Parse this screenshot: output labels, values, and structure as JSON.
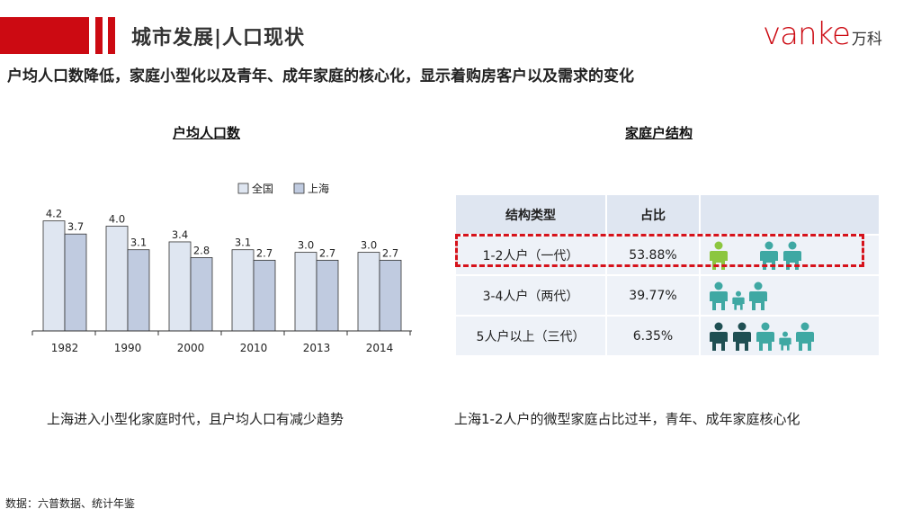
{
  "header": {
    "title": "城市发展|人口现状",
    "logo_latin": "vanke",
    "logo_cn": "万科",
    "brand_color": "#cc0a12"
  },
  "subtitle": "户均人口数降低，家庭小型化以及青年、成年家庭的核心化，显示着购房客户以及需求的变化",
  "left": {
    "title": "户均人口数",
    "caption": "上海进入小型化家庭时代，且户均人口有减少趋势"
  },
  "chart_data": {
    "type": "bar",
    "title": "户均人口数",
    "categories": [
      "1982",
      "1990",
      "2000",
      "2010",
      "2013",
      "2014"
    ],
    "series": [
      {
        "name": "全国",
        "values": [
          4.2,
          4.0,
          3.4,
          3.1,
          3.0,
          3.0
        ],
        "color": "#dfe6f1"
      },
      {
        "name": "上海",
        "values": [
          3.7,
          3.1,
          2.8,
          2.7,
          2.7,
          2.7
        ],
        "color": "#c0cbe0"
      }
    ],
    "labels_national": [
      "4.2",
      "4.0",
      "3.4",
      "3.1",
      "3.0",
      "3.0"
    ],
    "labels_shanghai": [
      "3.7",
      "3.1",
      "2.8",
      "2.7",
      "2.7",
      "2.7"
    ],
    "ylim": [
      0,
      4.6
    ],
    "legend_position": "top-right",
    "grid": false
  },
  "right": {
    "title": "家庭户结构",
    "caption": "上海1-2人户的微型家庭占比过半，青年、成年家庭核心化",
    "table": {
      "headers": [
        "结构类型",
        "占比",
        ""
      ],
      "rows": [
        {
          "type": "1-2人户（一代）",
          "share": "53.88%",
          "icons": [
            "person-green-icon",
            "person-teal-icon",
            "person-teal-icon"
          ]
        },
        {
          "type": "3-4人户（两代）",
          "share": "39.77%",
          "icons": [
            "person-teal-icon",
            "child-teal-icon",
            "person-teal-icon"
          ]
        },
        {
          "type": "5人户以上（三代）",
          "share": "6.35%",
          "icons": [
            "person-dark-icon",
            "person-dark-icon",
            "person-teal-icon",
            "child-teal-icon",
            "person-teal-icon"
          ]
        }
      ],
      "highlight_color": "#d6121b"
    }
  },
  "source": "数据：六普数据、统计年鉴"
}
